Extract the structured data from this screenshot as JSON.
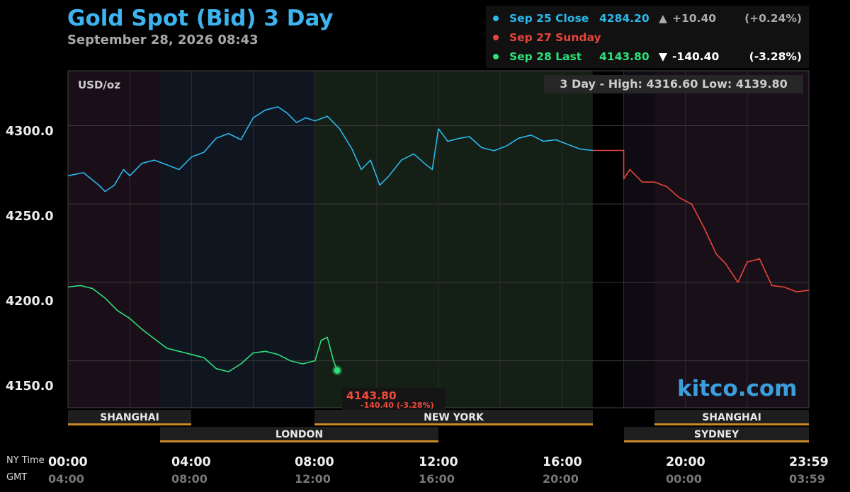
{
  "header": {
    "title": "Gold Spot (Bid) 3 Day",
    "timestamp": "September 28, 2026 08:43"
  },
  "legend": [
    {
      "label": "Sep 25 Close",
      "value": "4284.20",
      "arrow": "▲",
      "change": "+10.40",
      "percent": "(+0.24%)",
      "color": "#2bb8ec"
    },
    {
      "label": "Sep 27 Sunday",
      "value": "",
      "arrow": "",
      "change": "",
      "percent": "",
      "color": "#e8453a"
    },
    {
      "label": "Sep 28 Last",
      "value": "4143.80",
      "arrow": "▼",
      "change": "-140.40",
      "percent": "(-3.28%)",
      "color": "#2ee07a"
    }
  ],
  "unit_label": "USD/oz",
  "high_low": "3 Day - High: 4316.60  Low: 4139.80",
  "watermark": "kitco.com",
  "last_marker": {
    "value": "4143.80",
    "change": "-140.40 (-3.28%)"
  },
  "y_axis": {
    "ticks": [
      "4300.0",
      "4250.0",
      "4200.0",
      "4150.0"
    ]
  },
  "x_axis": {
    "ny_label": "NY Time",
    "gmt_label": "GMT",
    "ny_ticks": [
      "00:00",
      "04:00",
      "08:00",
      "12:00",
      "16:00",
      "20:00",
      "23:59"
    ],
    "gmt_ticks": [
      "04:00",
      "08:00",
      "12:00",
      "16:00",
      "20:00",
      "00:00",
      "03:59"
    ]
  },
  "sessions": {
    "row1": [
      "SHANGHAI",
      "NEW YORK",
      "SHANGHAI"
    ],
    "row2": [
      "LONDON",
      "SYDNEY"
    ]
  },
  "chart_data": {
    "type": "line",
    "x_unit": "hours (NY time)",
    "xlim": [
      0,
      24
    ],
    "ylim": [
      4120,
      4335
    ],
    "grid": true,
    "series": [
      {
        "name": "Sep 25 Close",
        "color": "#2bb8ec",
        "x": [
          0,
          0.5,
          1,
          1.2,
          1.5,
          1.8,
          2,
          2.4,
          2.8,
          3.2,
          3.6,
          4,
          4.4,
          4.8,
          5.2,
          5.6,
          6,
          6.4,
          6.8,
          7.1,
          7.4,
          7.7,
          8,
          8.4,
          8.8,
          9.2,
          9.5,
          9.8,
          10.1,
          10.4,
          10.8,
          11.2,
          11.6,
          11.8,
          12,
          12.3,
          12.7,
          13,
          13.4,
          13.8,
          14.2,
          14.6,
          15,
          15.4,
          15.8,
          16.2,
          16.6,
          17
        ],
        "y": [
          4268,
          4270,
          4262,
          4258,
          4262,
          4272,
          4268,
          4276,
          4278,
          4275,
          4272,
          4280,
          4283,
          4292,
          4295,
          4291,
          4305,
          4310,
          4312,
          4308,
          4302,
          4305,
          4303,
          4306,
          4298,
          4285,
          4272,
          4278,
          4262,
          4268,
          4278,
          4282,
          4275,
          4272,
          4298,
          4290,
          4292,
          4293,
          4286,
          4284,
          4287,
          4292,
          4294,
          4290,
          4291,
          4288,
          4285,
          4284.2
        ]
      },
      {
        "name": "Sep 27 Sunday",
        "color": "#e8453a",
        "x": [
          17,
          18,
          18,
          18.2,
          18.6,
          19,
          19.4,
          19.8,
          20.2,
          20.6,
          21,
          21.3,
          21.7,
          22,
          22.4,
          22.8,
          23.2,
          23.6,
          24
        ],
        "y": [
          4284.2,
          4284.2,
          4266,
          4272,
          4264,
          4264,
          4261,
          4254,
          4250,
          4235,
          4218,
          4212,
          4200,
          4213,
          4215,
          4198,
          4197,
          4194,
          4195
        ]
      },
      {
        "name": "Sep 28 Last",
        "color": "#2ee07a",
        "x": [
          0,
          0.4,
          0.8,
          1.2,
          1.6,
          2,
          2.4,
          2.8,
          3.2,
          3.6,
          4,
          4.4,
          4.8,
          5.2,
          5.6,
          6,
          6.4,
          6.8,
          7.2,
          7.6,
          8,
          8.2,
          8.4,
          8.6,
          8.72
        ],
        "y": [
          4197,
          4198,
          4196,
          4190,
          4182,
          4177,
          4170,
          4164,
          4158,
          4156,
          4154,
          4152,
          4145,
          4143,
          4148,
          4155,
          4156,
          4154,
          4150,
          4148,
          4150,
          4163,
          4165,
          4150,
          4143.8
        ]
      }
    ]
  }
}
